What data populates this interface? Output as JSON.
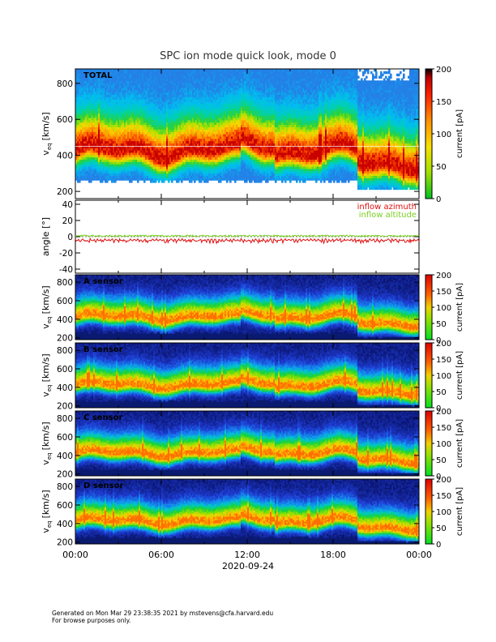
{
  "title": "SPC ion mode quick look, mode 0",
  "x_axis": {
    "tick_labels": [
      "00:00",
      "06:00",
      "12:00",
      "18:00",
      "00:00"
    ],
    "date_label": "2020-09-24"
  },
  "footer": {
    "line1": "Generated on Mon Mar 29 23:38:35 2021 by mstevens@cfa.harvard.edu",
    "line2": "For browse purposes only."
  },
  "chart_data": [
    {
      "type": "heatmap",
      "panel_label": "TOTAL",
      "ylabel_main": "v",
      "ylabel_sub": "eq",
      "ylabel_unit": "[km/s]",
      "y_ticks": [
        200,
        400,
        600,
        800
      ],
      "ylim": [
        160,
        880
      ],
      "colorbar": {
        "label": "current [pA]",
        "ticks": [
          0,
          50,
          100,
          150,
          200
        ],
        "range": [
          0,
          200
        ],
        "scale": "rainbow"
      }
    },
    {
      "type": "line",
      "ylabel": "angle [°]",
      "y_ticks": [
        -40,
        -20,
        0,
        20,
        40
      ],
      "ylim": [
        -45,
        45
      ],
      "series": [
        {
          "name": "inflow azimuth",
          "color": "#e01010"
        },
        {
          "name": "inflow altitude",
          "color": "#7ad020"
        }
      ]
    },
    {
      "type": "heatmap",
      "panel_label": "A sensor",
      "ylabel_main": "v",
      "ylabel_sub": "eq",
      "ylabel_unit": "[km/s]",
      "y_ticks": [
        200,
        400,
        600,
        800
      ],
      "ylim": [
        180,
        880
      ],
      "colorbar": {
        "label": "current [pA]",
        "ticks": [
          0,
          50,
          100,
          150,
          200
        ],
        "range": [
          0,
          200
        ],
        "scale": "green-red"
      }
    },
    {
      "type": "heatmap",
      "panel_label": "B sensor",
      "ylabel_main": "v",
      "ylabel_sub": "eq",
      "ylabel_unit": "[km/s]",
      "y_ticks": [
        200,
        400,
        600,
        800
      ],
      "ylim": [
        180,
        880
      ],
      "colorbar": {
        "label": "current [pA]",
        "ticks": [
          0,
          50,
          100,
          150,
          200
        ],
        "range": [
          0,
          200
        ],
        "scale": "green-red"
      }
    },
    {
      "type": "heatmap",
      "panel_label": "C sensor",
      "ylabel_main": "v",
      "ylabel_sub": "eq",
      "ylabel_unit": "[km/s]",
      "y_ticks": [
        200,
        400,
        600,
        800
      ],
      "ylim": [
        180,
        880
      ],
      "colorbar": {
        "label": "current [pA]",
        "ticks": [
          0,
          50,
          100,
          150,
          200
        ],
        "range": [
          0,
          200
        ],
        "scale": "green-red"
      }
    },
    {
      "type": "heatmap",
      "panel_label": "D sensor",
      "ylabel_main": "v",
      "ylabel_sub": "eq",
      "ylabel_unit": "[km/s]",
      "y_ticks": [
        200,
        400,
        600,
        800
      ],
      "ylim": [
        180,
        880
      ],
      "colorbar": {
        "label": "current [pA]",
        "ticks": [
          0,
          50,
          100,
          150,
          200
        ],
        "range": [
          0,
          200
        ],
        "scale": "green-red"
      }
    }
  ]
}
